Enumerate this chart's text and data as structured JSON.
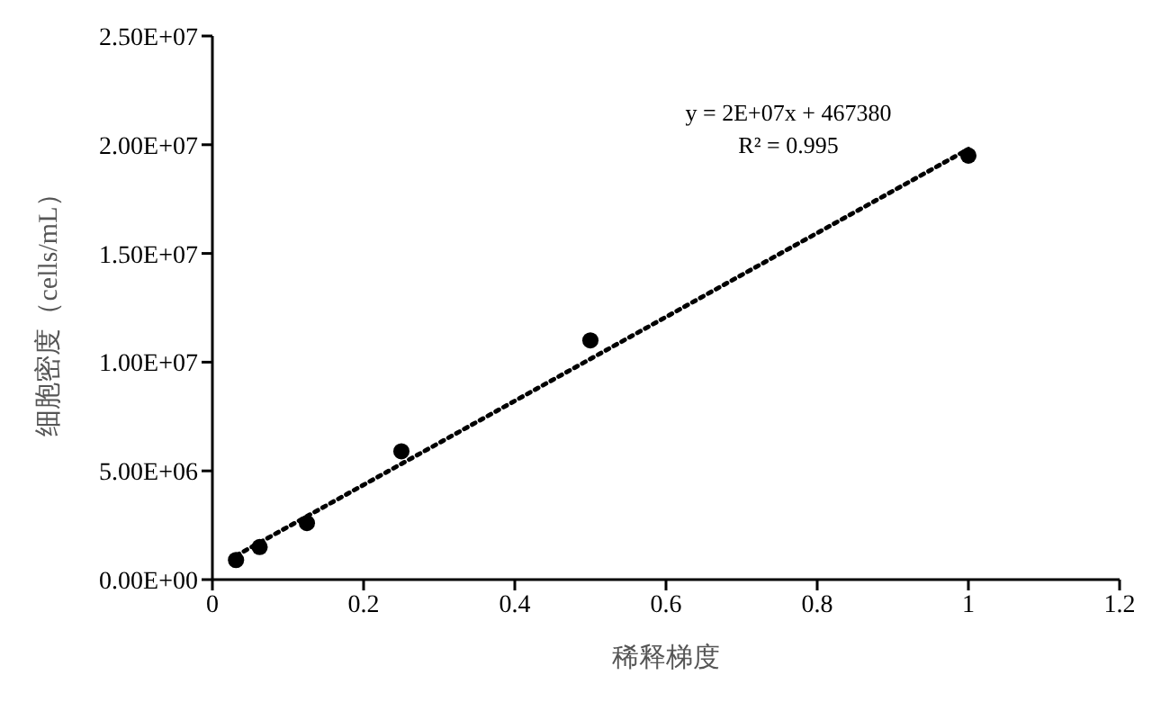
{
  "chart_data": {
    "type": "scatter",
    "xlabel": "稀释梯度",
    "ylabel": "细胞密度（cells/mL）",
    "x": [
      0.03125,
      0.0625,
      0.125,
      0.25,
      0.5,
      1
    ],
    "series": [
      {
        "color": "#000000",
        "marker": "circle",
        "values": [
          900000,
          1500000,
          2600000,
          5900000,
          11000000,
          19500000
        ]
      },
      {
        "type": "line",
        "color": "#000000",
        "line_style": "dotted",
        "marker": "none",
        "x": [
          0.03125,
          1
        ],
        "values": [
          1100000,
          19800000
        ]
      }
    ],
    "xlim": [
      0,
      1.2
    ],
    "xticks": [
      0,
      0.2,
      0.4,
      0.6,
      0.8,
      1,
      1.2
    ],
    "ylim": [
      0,
      25000000
    ],
    "yticks": [
      {
        "value": 0,
        "label": "0.00E+00"
      },
      {
        "value": 5000000,
        "label": "5.00E+06"
      },
      {
        "value": 10000000,
        "label": "1.00E+07"
      },
      {
        "value": 15000000,
        "label": "1.50E+07"
      },
      {
        "value": 20000000,
        "label": "2.00E+07"
      },
      {
        "value": 25000000,
        "label": "2.50E+07"
      }
    ],
    "grid": false,
    "annotations": [
      "y = 2E+07x + 467380",
      "R² = 0.995"
    ]
  }
}
